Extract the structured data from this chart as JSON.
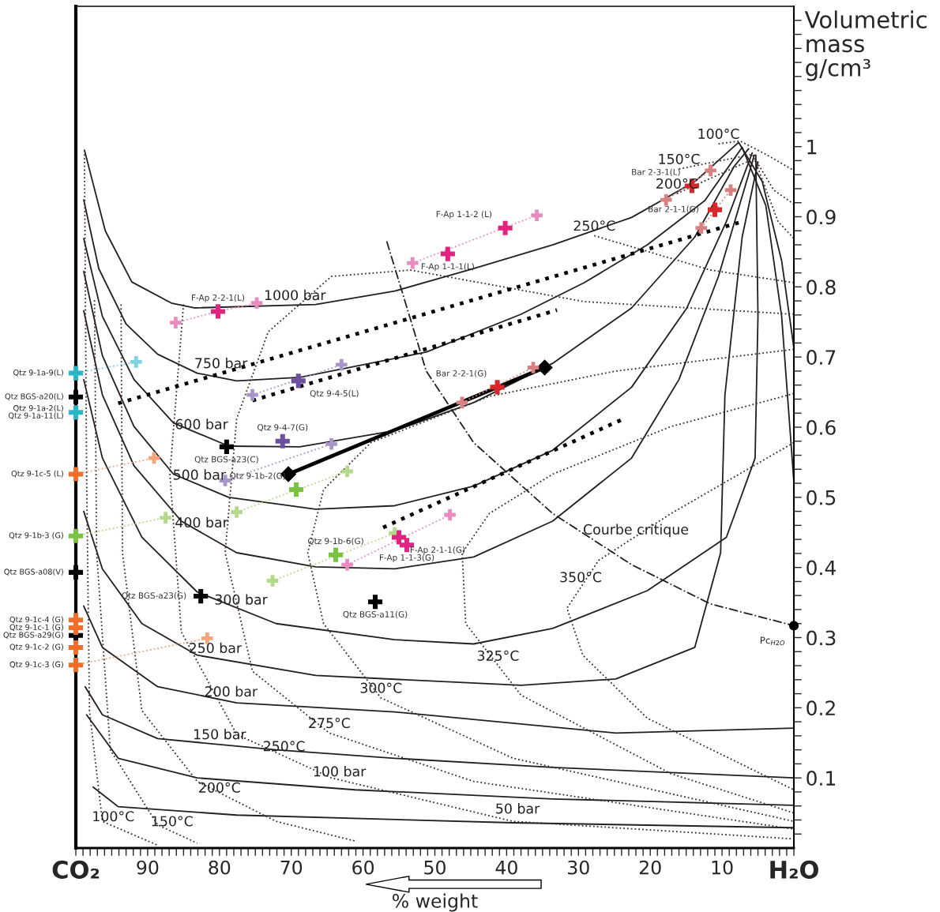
{
  "chart_data": {
    "type": "line",
    "xlabel": "% weight",
    "ylabel": "Volumetric\nmass\ng/cm³",
    "xlim": [
      100,
      0
    ],
    "ylim": [
      0,
      1.2
    ],
    "xticks": [
      {
        "value": 100,
        "label": "CO₂"
      },
      {
        "value": 99,
        "label": null
      },
      {
        "value": 98,
        "label": null
      },
      {
        "value": 97,
        "label": null
      },
      {
        "value": 96,
        "label": null
      },
      {
        "value": 95,
        "label": null
      },
      {
        "value": 94,
        "label": null
      },
      {
        "value": 93,
        "label": null
      },
      {
        "value": 92,
        "label": null
      },
      {
        "value": 91,
        "label": null
      },
      90,
      {
        "value": 89,
        "label": null
      },
      {
        "value": 88,
        "label": null
      },
      {
        "value": 87,
        "label": null
      },
      {
        "value": 86,
        "label": null
      },
      {
        "value": 85,
        "label": null
      },
      {
        "value": 84,
        "label": null
      },
      {
        "value": 83,
        "label": null
      },
      {
        "value": 82,
        "label": null
      },
      {
        "value": 81,
        "label": null
      },
      80,
      {
        "value": 79,
        "label": null
      },
      {
        "value": 78,
        "label": null
      },
      {
        "value": 77,
        "label": null
      },
      {
        "value": 76,
        "label": null
      },
      {
        "value": 75,
        "label": null
      },
      {
        "value": 74,
        "label": null
      },
      {
        "value": 73,
        "label": null
      },
      {
        "value": 72,
        "label": null
      },
      {
        "value": 71,
        "label": null
      },
      70,
      {
        "value": 69,
        "label": null
      },
      {
        "value": 68,
        "label": null
      },
      {
        "value": 67,
        "label": null
      },
      {
        "value": 66,
        "label": null
      },
      {
        "value": 65,
        "label": null
      },
      {
        "value": 64,
        "label": null
      },
      {
        "value": 63,
        "label": null
      },
      {
        "value": 62,
        "label": null
      },
      {
        "value": 61,
        "label": null
      },
      60,
      {
        "value": 59,
        "label": null
      },
      {
        "value": 58,
        "label": null
      },
      {
        "value": 57,
        "label": null
      },
      {
        "value": 56,
        "label": null
      },
      {
        "value": 55,
        "label": null
      },
      {
        "value": 54,
        "label": null
      },
      {
        "value": 53,
        "label": null
      },
      {
        "value": 52,
        "label": null
      },
      {
        "value": 51,
        "label": null
      },
      50,
      {
        "value": 49,
        "label": null
      },
      {
        "value": 48,
        "label": null
      },
      {
        "value": 47,
        "label": null
      },
      {
        "value": 46,
        "label": null
      },
      {
        "value": 45,
        "label": null
      },
      {
        "value": 44,
        "label": null
      },
      {
        "value": 43,
        "label": null
      },
      {
        "value": 42,
        "label": null
      },
      {
        "value": 41,
        "label": null
      },
      40,
      {
        "value": 39,
        "label": null
      },
      {
        "value": 38,
        "label": null
      },
      {
        "value": 37,
        "label": null
      },
      {
        "value": 36,
        "label": null
      },
      {
        "value": 35,
        "label": null
      },
      {
        "value": 34,
        "label": null
      },
      {
        "value": 33,
        "label": null
      },
      {
        "value": 32,
        "label": null
      },
      {
        "value": 31,
        "label": null
      },
      30,
      {
        "value": 29,
        "label": null
      },
      {
        "value": 28,
        "label": null
      },
      {
        "value": 27,
        "label": null
      },
      {
        "value": 26,
        "label": null
      },
      {
        "value": 25,
        "label": null
      },
      {
        "value": 24,
        "label": null
      },
      {
        "value": 23,
        "label": null
      },
      {
        "value": 22,
        "label": null
      },
      {
        "value": 21,
        "label": null
      },
      20,
      {
        "value": 19,
        "label": null
      },
      {
        "value": 18,
        "label": null
      },
      {
        "value": 17,
        "label": null
      },
      {
        "value": 16,
        "label": null
      },
      {
        "value": 15,
        "label": null
      },
      {
        "value": 14,
        "label": null
      },
      {
        "value": 13,
        "label": null
      },
      {
        "value": 12,
        "label": null
      },
      {
        "value": 11,
        "label": null
      },
      10,
      {
        "value": 9,
        "label": null
      },
      {
        "value": 8,
        "label": null
      },
      {
        "value": 7,
        "label": null
      },
      {
        "value": 6,
        "label": null
      },
      {
        "value": 5,
        "label": null
      },
      {
        "value": 4,
        "label": null
      },
      {
        "value": 3,
        "label": null
      },
      {
        "value": 2,
        "label": null
      },
      {
        "value": 1,
        "label": null
      },
      {
        "value": 0,
        "label": "H₂O"
      }
    ],
    "yticks": [
      {
        "value": 0.02,
        "label": null
      },
      {
        "value": 0.04,
        "label": null
      },
      {
        "value": 0.06,
        "label": null
      },
      {
        "value": 0.08,
        "label": null
      },
      0.1,
      {
        "value": 0.12,
        "label": null
      },
      {
        "value": 0.14,
        "label": null
      },
      {
        "value": 0.16,
        "label": null
      },
      {
        "value": 0.18,
        "label": null
      },
      0.2,
      {
        "value": 0.22,
        "label": null
      },
      {
        "value": 0.24,
        "label": null
      },
      {
        "value": 0.26,
        "label": null
      },
      {
        "value": 0.28,
        "label": null
      },
      0.3,
      {
        "value": 0.32,
        "label": null
      },
      {
        "value": 0.34,
        "label": null
      },
      {
        "value": 0.36,
        "label": null
      },
      {
        "value": 0.38,
        "label": null
      },
      0.4,
      {
        "value": 0.42,
        "label": null
      },
      {
        "value": 0.44,
        "label": null
      },
      {
        "value": 0.46,
        "label": null
      },
      {
        "value": 0.48,
        "label": null
      },
      0.5,
      {
        "value": 0.52,
        "label": null
      },
      {
        "value": 0.54,
        "label": null
      },
      {
        "value": 0.56,
        "label": null
      },
      {
        "value": 0.58,
        "label": null
      },
      0.6,
      {
        "value": 0.62,
        "label": null
      },
      {
        "value": 0.64,
        "label": null
      },
      {
        "value": 0.66,
        "label": null
      },
      {
        "value": 0.68,
        "label": null
      },
      0.7,
      {
        "value": 0.72,
        "label": null
      },
      {
        "value": 0.74,
        "label": null
      },
      {
        "value": 0.76,
        "label": null
      },
      {
        "value": 0.78,
        "label": null
      },
      0.8,
      {
        "value": 0.82,
        "label": null
      },
      {
        "value": 0.84,
        "label": null
      },
      {
        "value": 0.86,
        "label": null
      },
      {
        "value": 0.88,
        "label": null
      },
      0.9,
      {
        "value": 0.92,
        "label": null
      },
      {
        "value": 0.94,
        "label": null
      },
      {
        "value": 0.96,
        "label": null
      },
      {
        "value": 0.98,
        "label": null
      },
      1,
      {
        "value": 1.02,
        "label": null
      },
      {
        "value": 1.04,
        "label": null
      },
      {
        "value": 1.06,
        "label": null
      },
      {
        "value": 1.08,
        "label": null
      },
      {
        "value": 1.1,
        "label": null
      },
      {
        "value": 1.12,
        "label": null
      },
      {
        "value": 1.14,
        "label": null
      },
      {
        "value": 1.16,
        "label": null
      },
      {
        "value": 1.18,
        "label": null
      }
    ],
    "series": [
      {
        "color": "#231f20",
        "line_style": "solid",
        "x": [
          98.8,
          95.9,
          92.2,
          86.7,
          83.5,
          66.6,
          55.6,
          44.6,
          33.6,
          22.6,
          13.8,
          7.7,
          4.4,
          1.7,
          0
        ],
        "values": [
          0.995,
          0.88,
          0.807,
          0.777,
          0.77,
          0.775,
          0.794,
          0.826,
          0.86,
          0.899,
          0.95,
          1.006,
          0.95,
          0.837,
          0.713
        ]
      },
      {
        "color": "#231f20",
        "line_style": "solid",
        "x": [
          98.9,
          96.8,
          93.0,
          88.6,
          83.1,
          77.6,
          68.8,
          51.2,
          38.0,
          29.2,
          20.4,
          12.4,
          7.2,
          3.9,
          1.7,
          0
        ],
        "values": [
          0.924,
          0.826,
          0.747,
          0.704,
          0.677,
          0.666,
          0.671,
          0.707,
          0.761,
          0.806,
          0.86,
          0.923,
          0.999,
          0.916,
          0.758,
          0.522
        ]
      },
      {
        "color": "#231f20",
        "line_style": "solid",
        "x": [
          98.9,
          96.3,
          91.9,
          86.4,
          78.7,
          68.8,
          55.6,
          44.6,
          33.6,
          22.6,
          13.8,
          8.3,
          6.3
        ],
        "values": [
          0.869,
          0.758,
          0.668,
          0.606,
          0.573,
          0.572,
          0.595,
          0.635,
          0.691,
          0.77,
          0.871,
          0.972,
          0.997
        ]
      },
      {
        "color": "#231f20",
        "line_style": "solid",
        "x": [
          98.9,
          96.3,
          91.9,
          86.4,
          78.7,
          66.6,
          55.6,
          44.6,
          33.6,
          22.6,
          14.9,
          9.4,
          5.8
        ],
        "values": [
          0.822,
          0.702,
          0.601,
          0.533,
          0.5,
          0.483,
          0.488,
          0.516,
          0.567,
          0.657,
          0.77,
          0.893,
          0.991
        ]
      },
      {
        "color": "#231f20",
        "line_style": "solid",
        "x": [
          98.9,
          96.3,
          91.9,
          85.3,
          77.6,
          66.6,
          55.6,
          44.6,
          33.6,
          22.6,
          16.0,
          10.5,
          5.5
        ],
        "values": [
          0.766,
          0.646,
          0.545,
          0.466,
          0.421,
          0.401,
          0.398,
          0.415,
          0.466,
          0.556,
          0.668,
          0.815,
          0.988
        ]
      },
      {
        "color": "#231f20",
        "line_style": "solid",
        "x": [
          98.9,
          96.3,
          90.8,
          83.1,
          72.1,
          55.6,
          44.6,
          33.6,
          20.4,
          9.4,
          5.4,
          5.0,
          5.3
        ],
        "values": [
          0.668,
          0.556,
          0.443,
          0.365,
          0.32,
          0.297,
          0.291,
          0.313,
          0.367,
          0.443,
          0.556,
          0.758,
          0.988
        ]
      },
      {
        "color": "#231f20",
        "line_style": "solid",
        "x": [
          98.9,
          96.3,
          90.8,
          83.1,
          66.6,
          38.0,
          24.8,
          13.8,
          10.2,
          9.6,
          7.2,
          5.0
        ],
        "values": [
          0.48,
          0.398,
          0.32,
          0.275,
          0.246,
          0.232,
          0.241,
          0.286,
          0.421,
          0.646,
          0.871,
          0.978
        ]
      },
      {
        "color": "#231f20",
        "line_style": "solid",
        "x": [
          98.9,
          96.3,
          88.6,
          77.6,
          55.6,
          24.8,
          0
        ],
        "values": [
          0.345,
          0.286,
          0.23,
          0.207,
          0.194,
          0.164,
          0.171
        ]
      },
      {
        "color": "#231f20",
        "line_style": "solid",
        "x": [
          98.7,
          96.3,
          88.6,
          72.1,
          55.6,
          33.6,
          0
        ],
        "values": [
          0.23,
          0.19,
          0.156,
          0.14,
          0.128,
          0.115,
          0.1
        ]
      },
      {
        "color": "#231f20",
        "line_style": "solid",
        "x": [
          98.5,
          94.1,
          83.1,
          61.1,
          33.6,
          0
        ],
        "values": [
          0.19,
          0.128,
          0.1,
          0.083,
          0.07,
          0.061
        ]
      },
      {
        "color": "#231f20",
        "line_style": "solid",
        "x": [
          97.6,
          94.1,
          77.6,
          39.1,
          0
        ],
        "values": [
          0.087,
          0.059,
          0.047,
          0.036,
          0.029
        ]
      },
      {
        "color": "#3c2a2a",
        "line_style": "dotted",
        "x": [
          98.8,
          98.5,
          98.1,
          96.3,
          88.6,
          null,
          10.5,
          7.5,
          3.9,
          0
        ],
        "values": [
          0.989,
          0.533,
          0.196,
          0.038,
          0.004,
          null,
          1.004,
          1.008,
          0.989,
          0.966
        ]
      },
      {
        "color": "#3c2a2a",
        "line_style": "dotted",
        "x": [
          97.4,
          97.1,
          95.2,
          88.6,
          83.1,
          null,
          16.0,
          5.8,
          2.8,
          0
        ],
        "values": [
          0.781,
          0.421,
          0.14,
          0.033,
          0.007,
          null,
          0.968,
          0.989,
          0.938,
          0.918
        ]
      },
      {
        "color": "#3c2a2a",
        "line_style": "dotted",
        "x": [
          93.7,
          93.5,
          90.8,
          83.1,
          72.1,
          61.1,
          null,
          16.3,
          5.5,
          2.2,
          0
        ],
        "values": [
          0.775,
          0.421,
          0.196,
          0.095,
          0.038,
          0.01,
          null,
          0.933,
          0.983,
          0.893,
          0.869
        ]
      },
      {
        "color": "#3c2a2a",
        "line_style": "dotted",
        "x": [
          85.0,
          86.9,
          85.3,
          77.6,
          64.4,
          39.1,
          0,
          null,
          27.8,
          11.6,
          0
        ],
        "values": [
          0.775,
          0.533,
          0.308,
          0.162,
          0.1,
          0.038,
          0.013,
          null,
          0.873,
          0.824,
          0.806
        ]
      },
      {
        "color": "#3c2a2a",
        "line_style": "dotted",
        "x": [
          0,
          29.2,
          53.4,
          64.4,
          73.2,
          77.6,
          79.2,
          75.4,
          64.7,
          44.6,
          0
        ],
        "values": [
          0.761,
          0.779,
          0.824,
          0.815,
          0.736,
          0.612,
          0.421,
          0.252,
          0.164,
          0.095,
          0.027
        ]
      },
      {
        "color": "#3c2a2a",
        "line_style": "dotted",
        "x": [
          0,
          24.8,
          42.4,
          58.9,
          65.5,
          67.7,
          65.5,
          57.5,
          39.1,
          0
        ],
        "values": [
          0.711,
          0.68,
          0.644,
          0.578,
          0.511,
          0.421,
          0.32,
          0.214,
          0.128,
          0.038
        ]
      },
      {
        "color": "#3c2a2a",
        "line_style": "dotted",
        "x": [
          0,
          17.1,
          33.6,
          42.4,
          46.2,
          45.7,
          38.0,
          17.1,
          0
        ],
        "values": [
          0.648,
          0.601,
          0.533,
          0.477,
          0.421,
          0.32,
          0.218,
          0.106,
          0.05
        ]
      },
      {
        "color": "#3c2a2a",
        "line_style": "dotted",
        "x": [
          0,
          17.1,
          27.2,
          31.6,
          29.4,
          20.4,
          0
        ],
        "values": [
          0.578,
          0.477,
          0.41,
          0.342,
          0.275,
          0.185,
          0.083
        ]
      },
      {
        "color": "#231f20",
        "line_style": "dashdot",
        "x": [
          56.7,
          51.2,
          44.6,
          33.6,
          22.6,
          11.6,
          0
        ],
        "values": [
          0.865,
          0.68,
          0.578,
          0.477,
          0.404,
          0.348,
          0.317
        ]
      },
      {
        "color": "#000000",
        "line_style": "dotted",
        "x": [
          94.1,
          7.2
        ],
        "values": [
          0.634,
          0.893
        ]
      },
      {
        "color": "#000000",
        "line_style": "dotted",
        "x": [
          75.4,
          33.0
        ],
        "values": [
          0.638,
          0.767
        ]
      },
      {
        "color": "#000000",
        "line_style": "dotted",
        "x": [
          57.2,
          23.7
        ],
        "values": [
          0.457,
          0.612
        ]
      },
      {
        "color": "#000000",
        "line_style": "solid",
        "marker": "diamond",
        "x": [
          70.4,
          34.7
        ],
        "values": [
          0.533,
          0.685
        ]
      },
      {
        "color": "#7fd3e0",
        "line_style": "dotted",
        "x": [
          100,
          91.6
        ],
        "values": [
          0.677,
          0.693
        ]
      },
      {
        "color": "#f5a57a",
        "line_style": "dotted",
        "x": [
          100,
          89.1
        ],
        "values": [
          0.533,
          0.556
        ]
      },
      {
        "color": "#b5d98a",
        "line_style": "dotted",
        "x": [
          100,
          87.5
        ],
        "values": [
          0.445,
          0.471
        ]
      },
      {
        "color": "#f5a57a",
        "line_style": "dotted",
        "x": [
          100,
          81.7
        ],
        "values": [
          0.261,
          0.299
        ]
      },
      {
        "color": "#e88cbf",
        "line_style": "dotted",
        "x": [
          86.1,
          80.2,
          74.8
        ],
        "values": [
          0.749,
          0.765,
          0.777
        ]
      },
      {
        "color": "#e88cbf",
        "line_style": "dotted",
        "x": [
          53.1,
          35.8
        ],
        "values": [
          0.834,
          0.902
        ]
      },
      {
        "color": "#d98080",
        "line_style": "dotted",
        "x": [
          17.8,
          11.6
        ],
        "values": [
          0.924,
          0.966
        ]
      },
      {
        "color": "#d98080",
        "line_style": "dotted",
        "x": [
          12.9,
          8.8
        ],
        "values": [
          0.884,
          0.938
        ]
      },
      {
        "color": "#d98080",
        "line_style": "dotted",
        "x": [
          46.2,
          36.3
        ],
        "values": [
          0.635,
          0.685
        ]
      },
      {
        "color": "#a896c8",
        "line_style": "dotted",
        "x": [
          75.4,
          63.0
        ],
        "values": [
          0.646,
          0.689
        ]
      },
      {
        "color": "#a896c8",
        "line_style": "dotted",
        "x": [
          79.2,
          64.4
        ],
        "values": [
          0.524,
          0.576
        ]
      },
      {
        "color": "#b5d98a",
        "line_style": "dotted",
        "x": [
          77.6,
          62.2
        ],
        "values": [
          0.479,
          0.537
        ]
      },
      {
        "color": "#b5d98a",
        "line_style": "dotted",
        "x": [
          72.6,
          55.6
        ],
        "values": [
          0.381,
          0.449
        ]
      },
      {
        "color": "#e88cbf",
        "line_style": "dotted",
        "x": [
          62.2,
          47.9
        ],
        "values": [
          0.404,
          0.475
        ]
      },
      {
        "type": "scatter",
        "marker": "cross",
        "color": "#7fd3e0",
        "x": [
          91.6
        ],
        "values": [
          0.693
        ]
      },
      {
        "type": "scatter",
        "marker": "cross",
        "color": "#f5a57a",
        "x": [
          89.1,
          81.7
        ],
        "values": [
          0.556,
          0.299
        ]
      },
      {
        "type": "scatter",
        "marker": "cross",
        "color": "#b5d98a",
        "x": [
          87.5,
          77.6,
          62.2,
          72.6,
          55.6
        ],
        "values": [
          0.471,
          0.479,
          0.537,
          0.381,
          0.449
        ]
      },
      {
        "type": "scatter",
        "marker": "cross",
        "color": "#e88cbf",
        "x": [
          86.1,
          74.8,
          53.1,
          35.8,
          62.2,
          47.9
        ],
        "values": [
          0.749,
          0.777,
          0.834,
          0.902,
          0.404,
          0.475
        ]
      },
      {
        "type": "scatter",
        "marker": "cross",
        "color": "#d98080",
        "x": [
          17.8,
          11.6,
          12.9,
          8.8,
          46.2,
          36.3
        ],
        "values": [
          0.924,
          0.966,
          0.884,
          0.938,
          0.635,
          0.685
        ]
      },
      {
        "type": "scatter",
        "marker": "cross",
        "color": "#a896c8",
        "x": [
          75.4,
          63.0,
          79.2,
          64.4
        ],
        "values": [
          0.646,
          0.689,
          0.524,
          0.576
        ]
      },
      {
        "type": "scatter",
        "marker": "cross",
        "color": "#29b6c9",
        "x": [
          100,
          100
        ],
        "values": [
          0.677,
          0.621
        ],
        "value_labels": [
          "Qtz 9-1a-9(L)",
          "Qtz 9-1a-2(L)\nQtz 9-1a-11(L)"
        ]
      },
      {
        "type": "scatter",
        "marker": "cross",
        "color": "#000000",
        "x": [
          100,
          100,
          100,
          79.0,
          82.6,
          58.3
        ],
        "values": [
          0.643,
          0.393,
          0.303,
          0.572,
          0.359,
          0.351
        ],
        "value_labels": [
          "Qtz BGS-a20(L)",
          "Qtz BGS-a08(V)",
          "Qtz BGS-a29(G)",
          "Qtz BGS-a23(C)",
          "Qtz BGS-a23(G)",
          "Qtz BGS-a11(G)"
        ]
      },
      {
        "type": "scatter",
        "marker": "cross",
        "color": "#f26c2a",
        "x": [
          100,
          100,
          100,
          100,
          100
        ],
        "values": [
          0.533,
          0.325,
          0.314,
          0.286,
          0.261
        ],
        "value_labels": [
          "Qtz 9-1c-5 (L)",
          "Qtz 9-1c-4 (G)",
          "Qtz 9-1c-1 (G)",
          "Qtz 9-1c-2 (G)",
          "Qtz 9-1c-3 (G)"
        ]
      },
      {
        "type": "scatter",
        "marker": "cross",
        "color": "#7cc242",
        "x": [
          100,
          69.3,
          63.8
        ],
        "values": [
          0.445,
          0.511,
          0.418
        ],
        "value_labels": [
          "Qtz 9-1b-3 (G)",
          "Qtz 9-1b-2(G)",
          "Qtz 9-1b-6(G)"
        ]
      },
      {
        "type": "scatter",
        "marker": "cross",
        "color": "#e0247f",
        "x": [
          80.2,
          48.2,
          40.2,
          55.0,
          53.9
        ],
        "values": [
          0.765,
          0.847,
          0.884,
          0.443,
          0.432
        ],
        "value_labels": [
          "F-Ap 2-2-1(L)",
          "F-Ap 1-1-1(L)",
          "F-Ap 1-1-2 (L)",
          "F-Ap 2-1-1(G)",
          "F-Ap 1-1-3(G)"
        ]
      },
      {
        "type": "scatter",
        "marker": "cross",
        "color": "#d9262b",
        "x": [
          14.2,
          11.0,
          41.3
        ],
        "values": [
          0.944,
          0.91,
          0.657
        ],
        "value_labels": [
          "Bar 2-3-1(L)",
          "Bar 2-1-1(G)",
          "Bar 2-2-1(G)"
        ]
      },
      {
        "type": "scatter",
        "marker": "cross",
        "color": "#6d4fa0",
        "x": [
          69.0,
          71.2
        ],
        "values": [
          0.666,
          0.58
        ],
        "value_labels": [
          "Qtz 9-4-5(L)",
          "Qtz 9-4-7(G)"
        ]
      },
      {
        "type": "scatter",
        "marker": "circle",
        "color": "#000000",
        "x": [
          0
        ],
        "values": [
          0.317
        ],
        "value_labels": [
          "Pc$_{H2O}$"
        ]
      }
    ],
    "annotations": [
      {
        "text": "1000 bar",
        "x": 69.5,
        "y": 0.774
      },
      {
        "text": "750 bar",
        "x": 79.8,
        "y": 0.677
      },
      {
        "text": "600 bar",
        "x": 82.5,
        "y": 0.59
      },
      {
        "text": "500 bar",
        "x": 82.8,
        "y": 0.518
      },
      {
        "text": "400 bar",
        "x": 82.5,
        "y": 0.45
      },
      {
        "text": "300 bar",
        "x": 77.0,
        "y": 0.34
      },
      {
        "text": "250 bar",
        "x": 80.6,
        "y": 0.271
      },
      {
        "text": "200 bar",
        "x": 78.4,
        "y": 0.209
      },
      {
        "text": "150 bar",
        "x": 80.0,
        "y": 0.148
      },
      {
        "text": "100 bar",
        "x": 63.3,
        "y": 0.095
      },
      {
        "text": "50 bar",
        "x": 38.5,
        "y": 0.042
      },
      {
        "text": "100°C",
        "x": 94.8,
        "y": 0.031
      },
      {
        "text": "100°C",
        "x": 10.5,
        "y": 1.004
      },
      {
        "text": "150°C",
        "x": 86.6,
        "y": 0.024
      },
      {
        "text": "150°C",
        "x": 16.0,
        "y": 0.968
      },
      {
        "text": "200°C",
        "x": 80.0,
        "y": 0.072
      },
      {
        "text": "200°C",
        "x": 16.3,
        "y": 0.933
      },
      {
        "text": "250°C",
        "x": 71.0,
        "y": 0.131
      },
      {
        "text": "250°C",
        "x": 27.8,
        "y": 0.873
      },
      {
        "text": "275°C",
        "x": 64.7,
        "y": 0.164
      },
      {
        "text": "300°C",
        "x": 57.5,
        "y": 0.214
      },
      {
        "text": "325°C",
        "x": 41.2,
        "y": 0.26
      },
      {
        "text": "350°C",
        "x": 29.7,
        "y": 0.372
      },
      {
        "text": "Courbe critique",
        "x": 22.0,
        "y": 0.44
      }
    ]
  }
}
